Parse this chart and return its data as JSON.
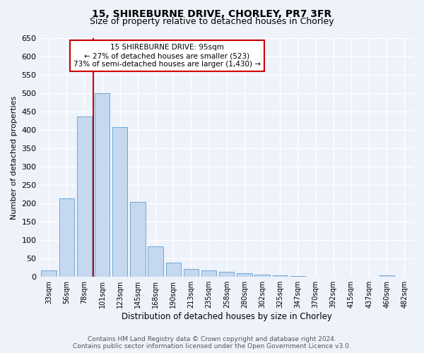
{
  "title1": "15, SHIREBURNE DRIVE, CHORLEY, PR7 3FR",
  "title2": "Size of property relative to detached houses in Chorley",
  "xlabel": "Distribution of detached houses by size in Chorley",
  "ylabel": "Number of detached properties",
  "categories": [
    "33sqm",
    "56sqm",
    "78sqm",
    "101sqm",
    "123sqm",
    "145sqm",
    "168sqm",
    "190sqm",
    "213sqm",
    "235sqm",
    "258sqm",
    "280sqm",
    "302sqm",
    "325sqm",
    "347sqm",
    "370sqm",
    "392sqm",
    "415sqm",
    "437sqm",
    "460sqm",
    "482sqm"
  ],
  "values": [
    18,
    213,
    437,
    500,
    407,
    205,
    83,
    38,
    22,
    18,
    14,
    10,
    6,
    4,
    3,
    0,
    0,
    0,
    0,
    5,
    0
  ],
  "bar_color": "#c5d8f0",
  "bar_edge_color": "#6fa8d6",
  "vline_x": 3,
  "vline_color": "#cc0000",
  "annotation_text": "15 SHIREBURNE DRIVE: 95sqm\n← 27% of detached houses are smaller (523)\n73% of semi-detached houses are larger (1,430) →",
  "annotation_box_color": "#ffffff",
  "annotation_box_edgecolor": "#cc0000",
  "ylim": [
    0,
    650
  ],
  "yticks": [
    0,
    50,
    100,
    150,
    200,
    250,
    300,
    350,
    400,
    450,
    500,
    550,
    600,
    650
  ],
  "footer": "Contains HM Land Registry data © Crown copyright and database right 2024.\nContains public sector information licensed under the Open Government Licence v3.0.",
  "bg_color": "#eef2fb",
  "grid_color": "#ffffff"
}
